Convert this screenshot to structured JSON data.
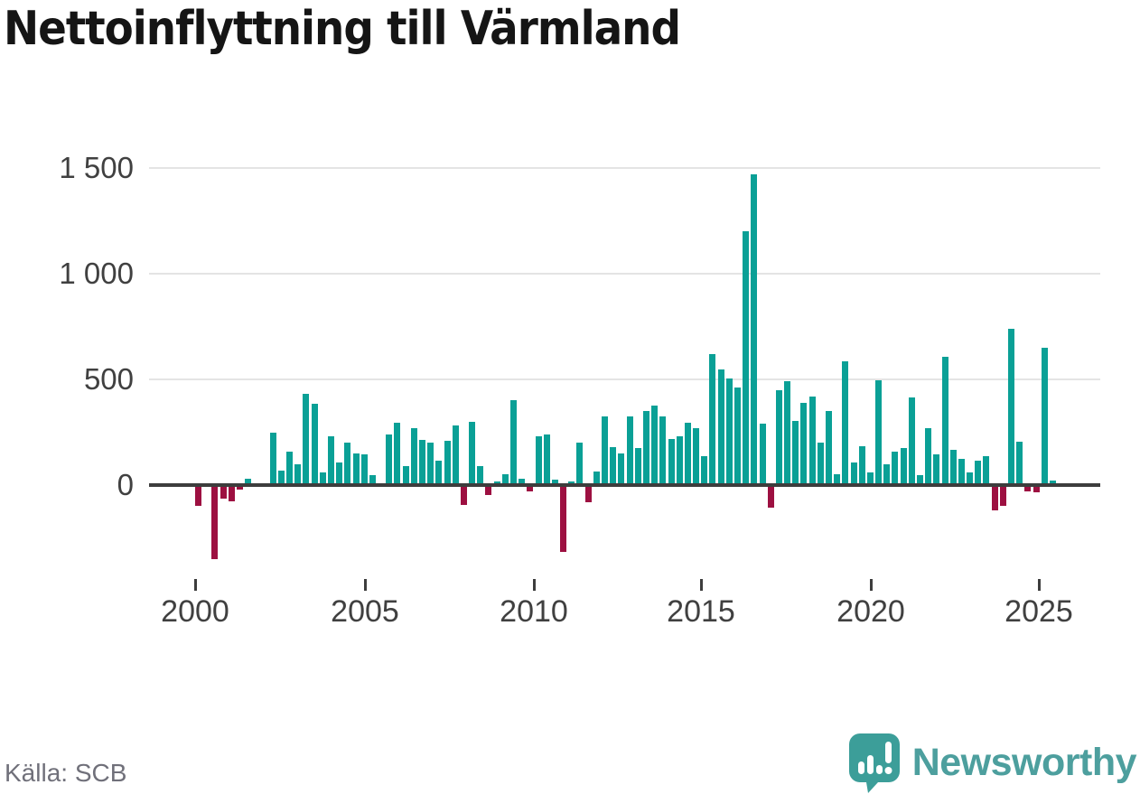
{
  "title": "Nettoinflyttning till Värmland",
  "source": "Källa: SCB",
  "branding": {
    "name": "Newsworthy"
  },
  "colors": {
    "positive": "#0aa096",
    "negative": "#9d1041",
    "axis": "#3d3d3d",
    "grid": "#e4e4e4",
    "brand_bubble": "#3c9e99",
    "brand_text": "#4d9f9e"
  },
  "chart_data": {
    "type": "bar",
    "title": "Nettoinflyttning till Värmland",
    "frequency": "quarterly",
    "start_year": 2000,
    "start_quarter": 1,
    "end_year": 2025,
    "end_quarter": 4,
    "ylim": [
      -400,
      1550
    ],
    "grid": "horizontal",
    "legend": "none",
    "y_ticks": [
      {
        "label": "1 500",
        "value": 1500
      },
      {
        "label": "1 000",
        "value": 1000
      },
      {
        "label": "500",
        "value": 500
      },
      {
        "label": "0",
        "value": 0
      }
    ],
    "x_ticks": [
      {
        "label": "2000",
        "year": 2000
      },
      {
        "label": "2005",
        "year": 2005
      },
      {
        "label": "2010",
        "year": 2010
      },
      {
        "label": "2015",
        "year": 2015
      },
      {
        "label": "2020",
        "year": 2020
      },
      {
        "label": "2025",
        "year": 2025
      }
    ],
    "values": [
      -100,
      0,
      -350,
      -65,
      -75,
      -20,
      30,
      0,
      0,
      250,
      70,
      160,
      100,
      430,
      385,
      60,
      230,
      105,
      200,
      150,
      145,
      45,
      10,
      240,
      295,
      90,
      270,
      215,
      200,
      115,
      210,
      280,
      -95,
      300,
      90,
      -45,
      15,
      50,
      400,
      30,
      -30,
      230,
      240,
      25,
      -315,
      15,
      200,
      -80,
      65,
      325,
      180,
      150,
      325,
      175,
      350,
      375,
      325,
      220,
      230,
      295,
      270,
      135,
      620,
      545,
      505,
      460,
      1200,
      1470,
      290,
      -105,
      450,
      490,
      305,
      390,
      420,
      200,
      350,
      50,
      585,
      105,
      185,
      60,
      495,
      100,
      160,
      175,
      415,
      45,
      270,
      145,
      605,
      165,
      125,
      60,
      115,
      135,
      -120,
      -100,
      740,
      205,
      -30,
      -35,
      650,
      20
    ]
  }
}
